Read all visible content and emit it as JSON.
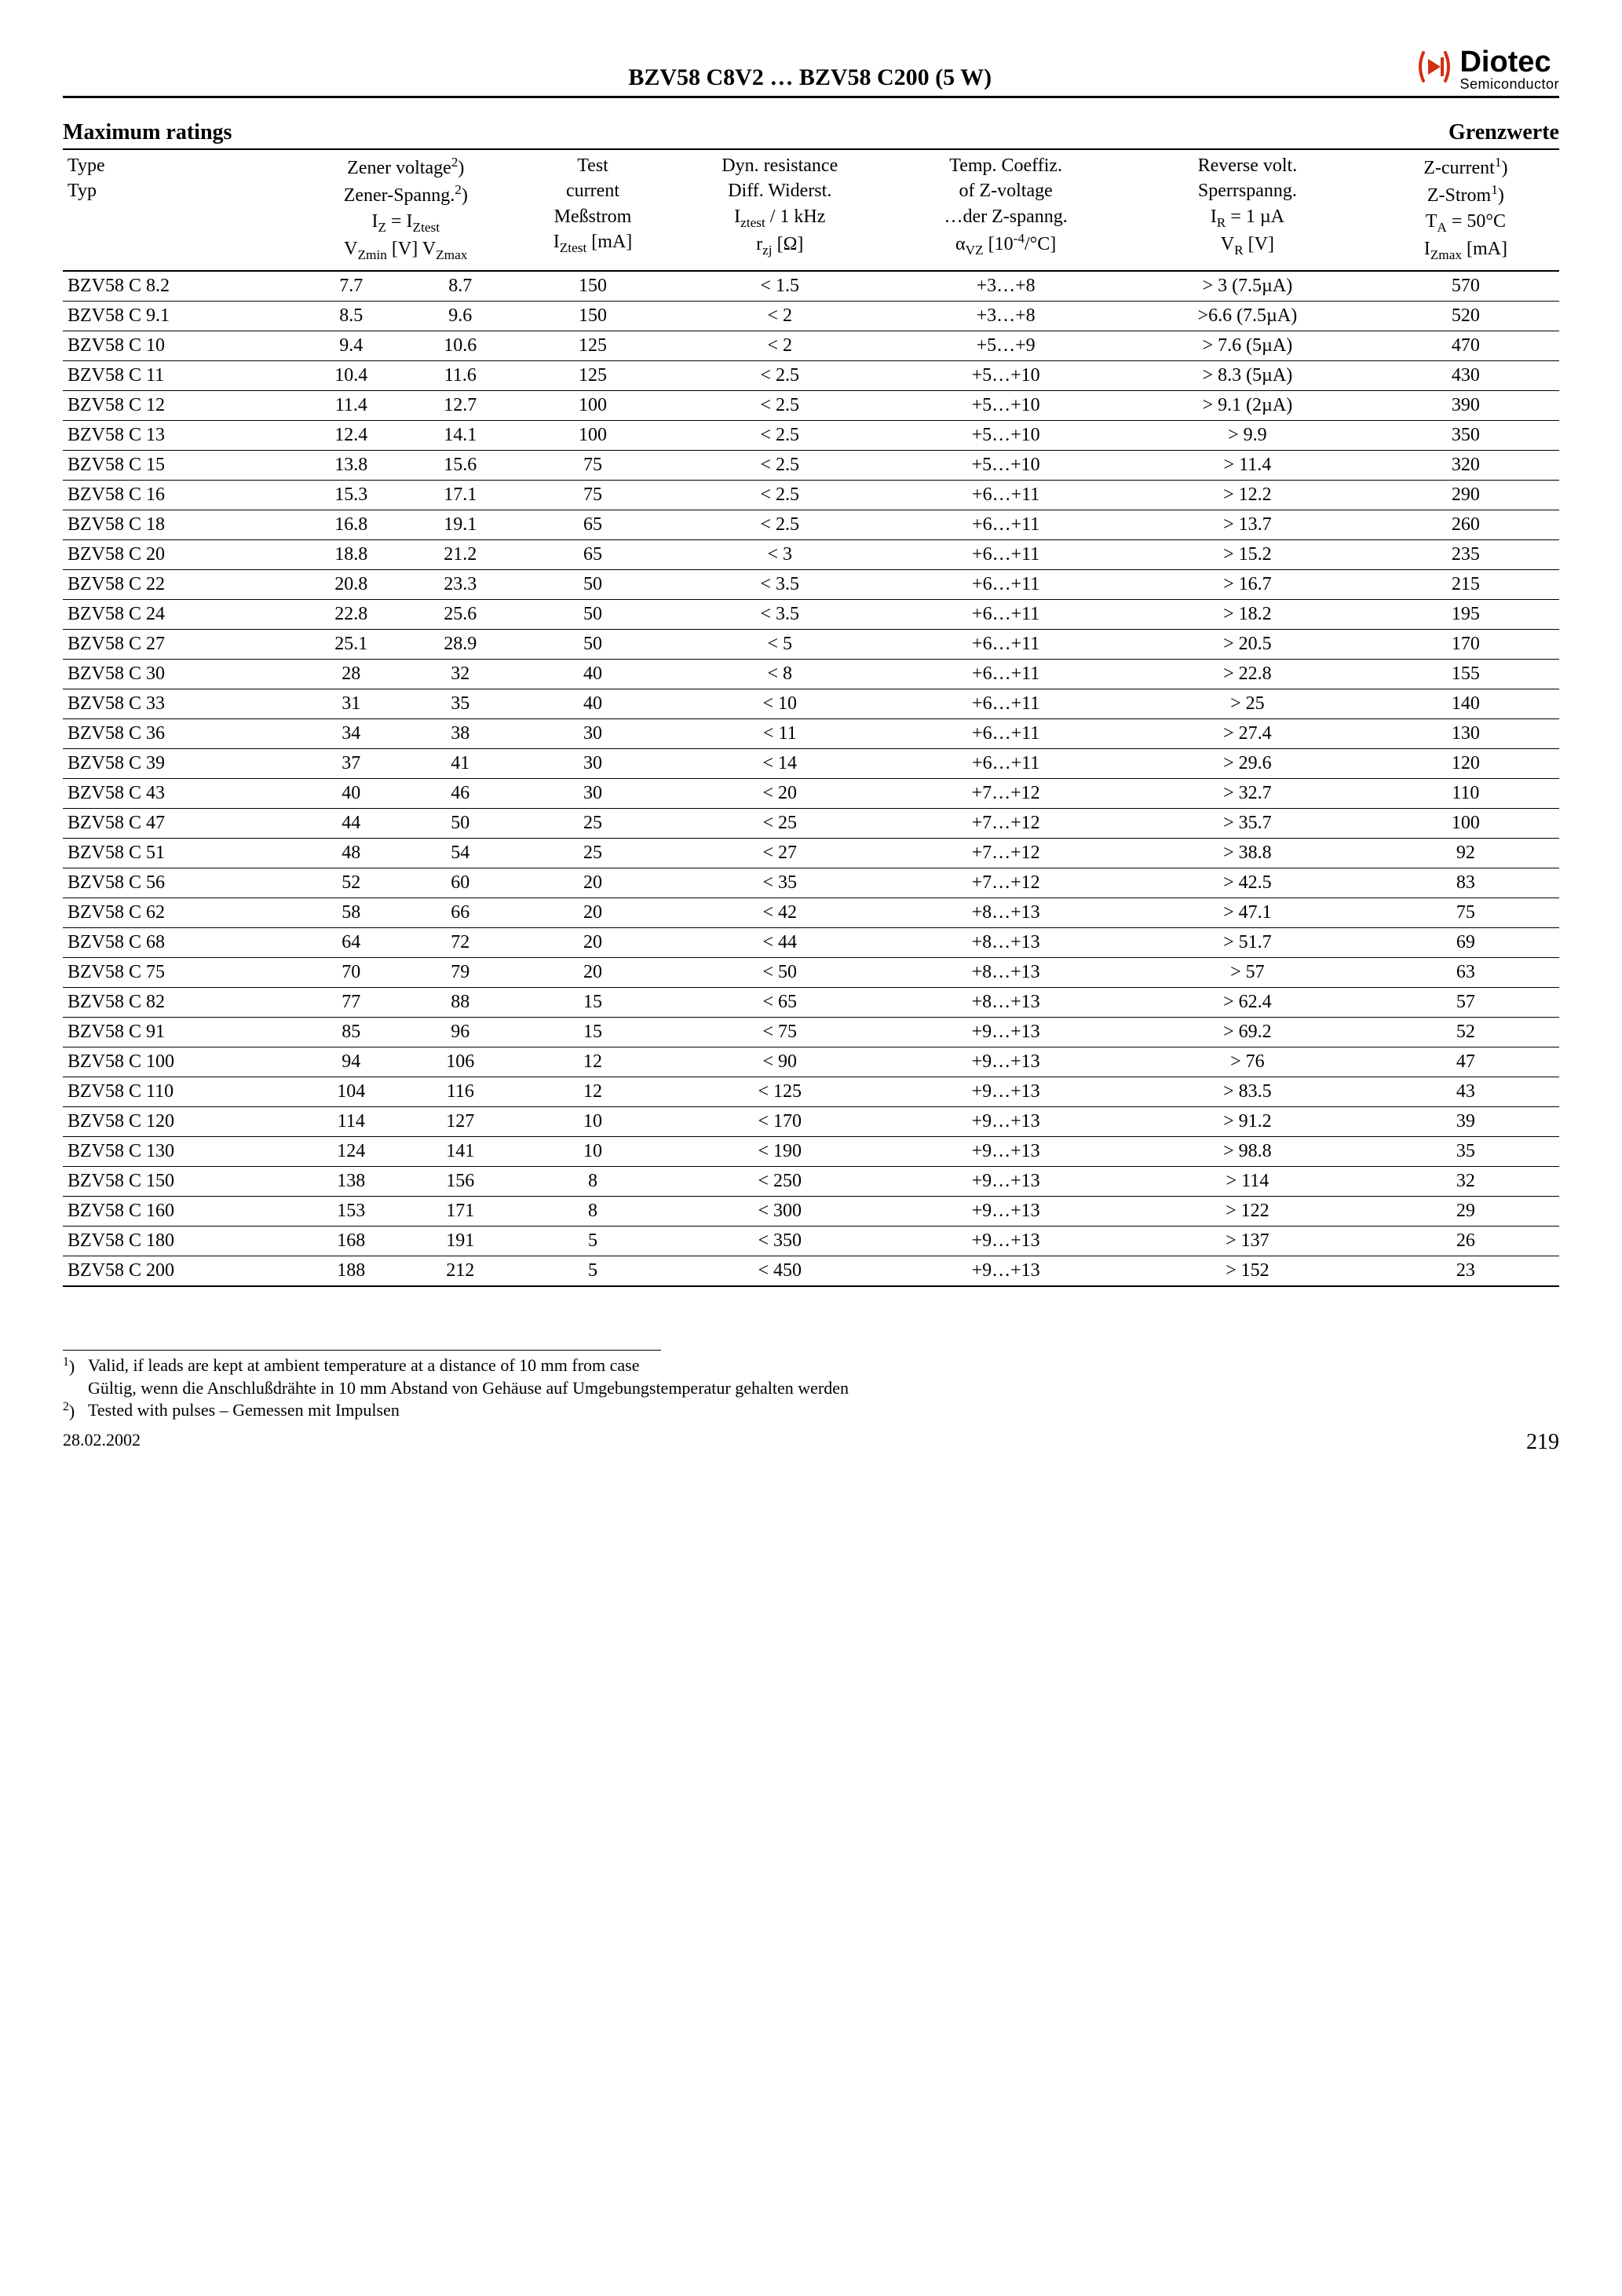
{
  "header": {
    "title": "BZV58 C8V2 … BZV58 C200 (5 W)",
    "logo_main": "Diotec",
    "logo_sub": "Semiconductor",
    "logo_color": "#d42e12"
  },
  "section": {
    "left": "Maximum ratings",
    "right": "Grenzwerte"
  },
  "columns": {
    "type": {
      "l1": "Type",
      "l2": "Typ"
    },
    "vz": {
      "l1": "Zener voltage",
      "sup1": "2",
      "l2": "Zener-Spanng.",
      "sup2": "2",
      "l3a": "I",
      "l3a_sub": "Z",
      "l3b": " = I",
      "l3b_sub": "Ztest",
      "l4a": "V",
      "l4a_sub": "Zmin",
      "l4b": " [V]  V",
      "l4b_sub": "Zmax"
    },
    "iztest": {
      "l1": "Test",
      "l2": "current",
      "l3": "Meßstrom",
      "l4a": "I",
      "l4a_sub": "Ztest",
      "l4b": " [mA]"
    },
    "rzj": {
      "l1": "Dyn. resistance",
      "l2": "Diff. Widerst.",
      "l3a": "I",
      "l3a_sub": "ztest",
      "l3b": " / 1 kHz",
      "l4a": "r",
      "l4a_sub": "zj",
      "l4b": " [Ω]"
    },
    "alpha": {
      "l1": "Temp. Coeffiz.",
      "l2": "of Z-voltage",
      "l3": "…der Z-spanng.",
      "l4a": "α",
      "l4a_sub": "VZ",
      "l4b": " [10",
      "l4b_sup": "-4",
      "l4c": "/°C]"
    },
    "vr": {
      "l1": "Reverse volt.",
      "l2": "Sperrspanng.",
      "l3a": "I",
      "l3a_sub": "R",
      "l3b": " = 1 µA",
      "l4a": "V",
      "l4a_sub": "R",
      "l4b": " [V]"
    },
    "izmax": {
      "l1": "Z-current",
      "sup1": "1",
      "l2": "Z-Strom",
      "sup2": "1",
      "l3a": "T",
      "l3a_sub": "A",
      "l3b": " = 50°C",
      "l4a": "I",
      "l4a_sub": "Zmax",
      "l4b": " [mA]"
    }
  },
  "rows": [
    {
      "type": "BZV58 C 8.2",
      "vzmin": "7.7",
      "vzmax": "8.7",
      "iztest": "150",
      "rzj": "< 1.5",
      "alpha": "+3…+8",
      "vr": "> 3 (7.5µA)",
      "izmax": "570"
    },
    {
      "type": "BZV58 C 9.1",
      "vzmin": "8.5",
      "vzmax": "9.6",
      "iztest": "150",
      "rzj": "< 2",
      "alpha": "+3…+8",
      "vr": ">6.6 (7.5µA)",
      "izmax": "520"
    },
    {
      "type": "BZV58 C 10",
      "vzmin": "9.4",
      "vzmax": "10.6",
      "iztest": "125",
      "rzj": "< 2",
      "alpha": "+5…+9",
      "vr": "> 7.6 (5µA)",
      "izmax": "470"
    },
    {
      "type": "BZV58 C 11",
      "vzmin": "10.4",
      "vzmax": "11.6",
      "iztest": "125",
      "rzj": "< 2.5",
      "alpha": "+5…+10",
      "vr": "> 8.3 (5µA)",
      "izmax": "430"
    },
    {
      "type": "BZV58 C 12",
      "vzmin": "11.4",
      "vzmax": "12.7",
      "iztest": "100",
      "rzj": "< 2.5",
      "alpha": "+5…+10",
      "vr": "> 9.1 (2µA)",
      "izmax": "390"
    },
    {
      "type": "BZV58 C 13",
      "vzmin": "12.4",
      "vzmax": "14.1",
      "iztest": "100",
      "rzj": "< 2.5",
      "alpha": "+5…+10",
      "vr": "> 9.9",
      "izmax": "350"
    },
    {
      "type": "BZV58 C 15",
      "vzmin": "13.8",
      "vzmax": "15.6",
      "iztest": "75",
      "rzj": "< 2.5",
      "alpha": "+5…+10",
      "vr": "> 11.4",
      "izmax": "320"
    },
    {
      "type": "BZV58 C 16",
      "vzmin": "15.3",
      "vzmax": "17.1",
      "iztest": "75",
      "rzj": "< 2.5",
      "alpha": "+6…+11",
      "vr": "> 12.2",
      "izmax": "290"
    },
    {
      "type": "BZV58 C 18",
      "vzmin": "16.8",
      "vzmax": "19.1",
      "iztest": "65",
      "rzj": "< 2.5",
      "alpha": "+6…+11",
      "vr": "> 13.7",
      "izmax": "260"
    },
    {
      "type": "BZV58 C 20",
      "vzmin": "18.8",
      "vzmax": "21.2",
      "iztest": "65",
      "rzj": "< 3",
      "alpha": "+6…+11",
      "vr": "> 15.2",
      "izmax": "235"
    },
    {
      "type": "BZV58 C 22",
      "vzmin": "20.8",
      "vzmax": "23.3",
      "iztest": "50",
      "rzj": "< 3.5",
      "alpha": "+6…+11",
      "vr": "> 16.7",
      "izmax": "215"
    },
    {
      "type": "BZV58 C 24",
      "vzmin": "22.8",
      "vzmax": "25.6",
      "iztest": "50",
      "rzj": "< 3.5",
      "alpha": "+6…+11",
      "vr": "> 18.2",
      "izmax": "195"
    },
    {
      "type": "BZV58 C 27",
      "vzmin": "25.1",
      "vzmax": "28.9",
      "iztest": "50",
      "rzj": "< 5",
      "alpha": "+6…+11",
      "vr": "> 20.5",
      "izmax": "170"
    },
    {
      "type": "BZV58 C 30",
      "vzmin": "28",
      "vzmax": "32",
      "iztest": "40",
      "rzj": "< 8",
      "alpha": "+6…+11",
      "vr": "> 22.8",
      "izmax": "155"
    },
    {
      "type": "BZV58 C 33",
      "vzmin": "31",
      "vzmax": "35",
      "iztest": "40",
      "rzj": "< 10",
      "alpha": "+6…+11",
      "vr": "> 25",
      "izmax": "140"
    },
    {
      "type": "BZV58 C 36",
      "vzmin": "34",
      "vzmax": "38",
      "iztest": "30",
      "rzj": "< 11",
      "alpha": "+6…+11",
      "vr": "> 27.4",
      "izmax": "130"
    },
    {
      "type": "BZV58 C 39",
      "vzmin": "37",
      "vzmax": "41",
      "iztest": "30",
      "rzj": "< 14",
      "alpha": "+6…+11",
      "vr": "> 29.6",
      "izmax": "120"
    },
    {
      "type": "BZV58 C 43",
      "vzmin": "40",
      "vzmax": "46",
      "iztest": "30",
      "rzj": "< 20",
      "alpha": "+7…+12",
      "vr": "> 32.7",
      "izmax": "110"
    },
    {
      "type": "BZV58 C 47",
      "vzmin": "44",
      "vzmax": "50",
      "iztest": "25",
      "rzj": "< 25",
      "alpha": "+7…+12",
      "vr": "> 35.7",
      "izmax": "100"
    },
    {
      "type": "BZV58 C 51",
      "vzmin": "48",
      "vzmax": "54",
      "iztest": "25",
      "rzj": "< 27",
      "alpha": "+7…+12",
      "vr": "> 38.8",
      "izmax": "92"
    },
    {
      "type": "BZV58 C 56",
      "vzmin": "52",
      "vzmax": "60",
      "iztest": "20",
      "rzj": "< 35",
      "alpha": "+7…+12",
      "vr": "> 42.5",
      "izmax": "83"
    },
    {
      "type": "BZV58 C 62",
      "vzmin": "58",
      "vzmax": "66",
      "iztest": "20",
      "rzj": "< 42",
      "alpha": "+8…+13",
      "vr": "> 47.1",
      "izmax": "75"
    },
    {
      "type": "BZV58 C 68",
      "vzmin": "64",
      "vzmax": "72",
      "iztest": "20",
      "rzj": "< 44",
      "alpha": "+8…+13",
      "vr": "> 51.7",
      "izmax": "69"
    },
    {
      "type": "BZV58 C 75",
      "vzmin": "70",
      "vzmax": "79",
      "iztest": "20",
      "rzj": "< 50",
      "alpha": "+8…+13",
      "vr": "> 57",
      "izmax": "63"
    },
    {
      "type": "BZV58 C 82",
      "vzmin": "77",
      "vzmax": "88",
      "iztest": "15",
      "rzj": "< 65",
      "alpha": "+8…+13",
      "vr": "> 62.4",
      "izmax": "57"
    },
    {
      "type": "BZV58 C 91",
      "vzmin": "85",
      "vzmax": "96",
      "iztest": "15",
      "rzj": "< 75",
      "alpha": "+9…+13",
      "vr": "> 69.2",
      "izmax": "52"
    },
    {
      "type": "BZV58 C 100",
      "vzmin": "94",
      "vzmax": "106",
      "iztest": "12",
      "rzj": "< 90",
      "alpha": "+9…+13",
      "vr": "> 76",
      "izmax": "47"
    },
    {
      "type": "BZV58 C 110",
      "vzmin": "104",
      "vzmax": "116",
      "iztest": "12",
      "rzj": "< 125",
      "alpha": "+9…+13",
      "vr": "> 83.5",
      "izmax": "43"
    },
    {
      "type": "BZV58 C 120",
      "vzmin": "114",
      "vzmax": "127",
      "iztest": "10",
      "rzj": "< 170",
      "alpha": "+9…+13",
      "vr": "> 91.2",
      "izmax": "39"
    },
    {
      "type": "BZV58 C 130",
      "vzmin": "124",
      "vzmax": "141",
      "iztest": "10",
      "rzj": "< 190",
      "alpha": "+9…+13",
      "vr": "> 98.8",
      "izmax": "35"
    },
    {
      "type": "BZV58 C 150",
      "vzmin": "138",
      "vzmax": "156",
      "iztest": "8",
      "rzj": "< 250",
      "alpha": "+9…+13",
      "vr": "> 114",
      "izmax": "32"
    },
    {
      "type": "BZV58 C 160",
      "vzmin": "153",
      "vzmax": "171",
      "iztest": "8",
      "rzj": "< 300",
      "alpha": "+9…+13",
      "vr": "> 122",
      "izmax": "29"
    },
    {
      "type": "BZV58 C 180",
      "vzmin": "168",
      "vzmax": "191",
      "iztest": "5",
      "rzj": "< 350",
      "alpha": "+9…+13",
      "vr": "> 137",
      "izmax": "26"
    },
    {
      "type": "BZV58 C 200",
      "vzmin": "188",
      "vzmax": "212",
      "iztest": "5",
      "rzj": "< 450",
      "alpha": "+9…+13",
      "vr": "> 152",
      "izmax": "23"
    }
  ],
  "footnotes": {
    "fn1_mark": "1",
    "fn1_suffix": ")",
    "fn1_en": "Valid, if leads are kept at ambient temperature at a distance of 10 mm from case",
    "fn1_de": "Gültig, wenn die Anschlußdrähte in 10 mm Abstand von Gehäuse auf Umgebungstemperatur gehalten werden",
    "fn2_mark": "2",
    "fn2_suffix": ")",
    "fn2": "Tested with pulses – Gemessen mit Impulsen"
  },
  "footer": {
    "date": "28.02.2002",
    "page": "219"
  }
}
